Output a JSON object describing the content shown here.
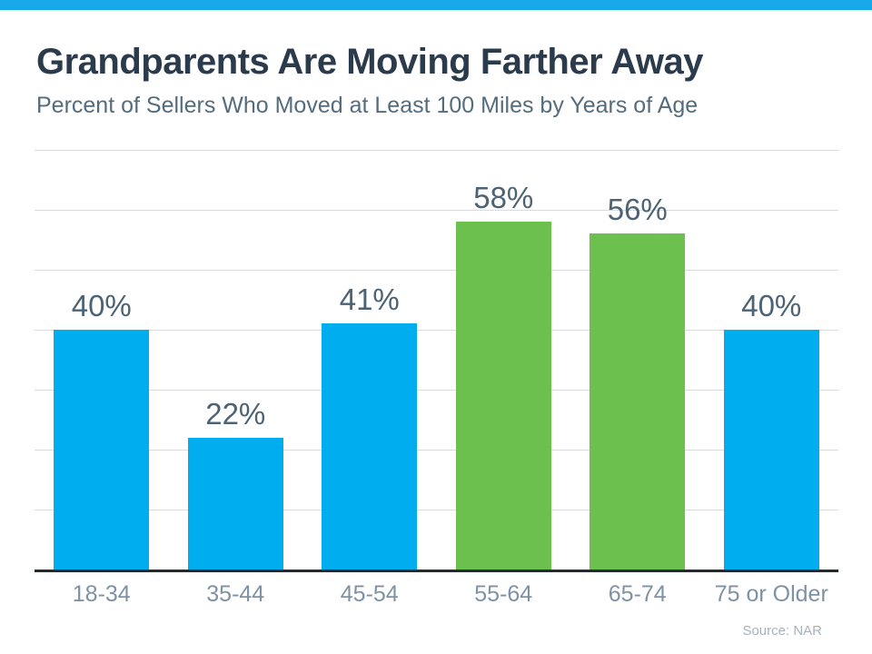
{
  "top_bar": {
    "color": "#16A8E8"
  },
  "header": {
    "title": "Grandparents Are Moving Farther Away",
    "subtitle": "Percent of Sellers Who Moved at Least 100 Miles by Years of Age"
  },
  "chart_data": {
    "type": "bar",
    "title": "Grandparents Are Moving Farther Away",
    "subtitle": "Percent of Sellers Who Moved at Least 100 Miles by Years of Age",
    "categories": [
      "18-34",
      "35-44",
      "45-54",
      "55-64",
      "65-74",
      "75 or Older"
    ],
    "values": [
      40,
      22,
      41,
      58,
      56,
      40
    ],
    "value_labels": [
      "40%",
      "22%",
      "41%",
      "58%",
      "56%",
      "40%"
    ],
    "bar_colors": [
      "#00AEEF",
      "#00AEEF",
      "#00AEEF",
      "#6CC04E",
      "#6CC04E",
      "#00AEEF"
    ],
    "xlabel": "",
    "ylabel": "",
    "ylim": [
      0,
      70
    ],
    "gridline_interval": 10,
    "grid": true,
    "legend": false,
    "colors": {
      "blue_bar": "#00AEEF",
      "green_bar": "#6CC04E",
      "gridline": "#DBDBDB",
      "axis_line": "#232B31",
      "value_label": "#4C6375",
      "x_label": "#7E92A5"
    }
  },
  "footer": {
    "source": "Source: NAR"
  }
}
